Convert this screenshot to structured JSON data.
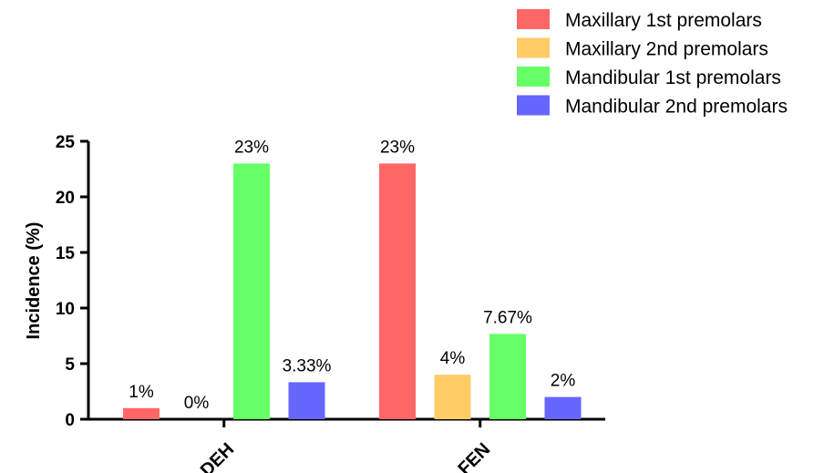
{
  "chart_data": {
    "type": "bar",
    "categories": [
      "DEH",
      "FEN"
    ],
    "series": [
      {
        "name": "Maxillary 1st premolars",
        "color": "#ff6666",
        "values": [
          1,
          23
        ],
        "labels": [
          "1%",
          "23%"
        ]
      },
      {
        "name": "Maxillary 2nd premolars",
        "color": "#ffcc66",
        "values": [
          0,
          4
        ],
        "labels": [
          "0%",
          "4%"
        ]
      },
      {
        "name": "Mandibular 1st premolars",
        "color": "#66ff66",
        "values": [
          23,
          7.67
        ],
        "labels": [
          "23%",
          "7.67%"
        ]
      },
      {
        "name": "Mandibular 2nd premolars",
        "color": "#6666ff",
        "values": [
          3.33,
          2
        ],
        "labels": [
          "3.33%",
          "2%"
        ]
      }
    ],
    "title": "",
    "xlabel": "",
    "ylabel": "Incidence (%)",
    "ylim": [
      0,
      25
    ],
    "yticks": [
      "0",
      "5",
      "10",
      "15",
      "20",
      "25"
    ],
    "grid": false,
    "legend_position": "top-right"
  }
}
